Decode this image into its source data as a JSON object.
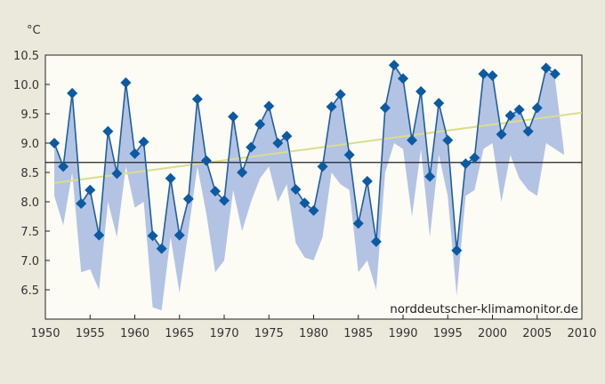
{
  "chart_data": {
    "type": "line",
    "ylabel": "°C",
    "xlabel": "",
    "watermark": "norddeutscher-klimamonitor.de",
    "xlim": [
      1950,
      2010
    ],
    "ylim": [
      6.0,
      10.5
    ],
    "x_ticks": [
      "1950",
      "1955",
      "1960",
      "1965",
      "1970",
      "1975",
      "1980",
      "1985",
      "1990",
      "1995",
      "2000",
      "2005",
      "2010"
    ],
    "y_ticks": [
      "10.5",
      "10.0",
      "9.5",
      "9.0",
      "8.5",
      "8.0",
      "7.5",
      "7.0",
      "6.5"
    ],
    "grid": false,
    "years": [
      1951,
      1952,
      1953,
      1954,
      1955,
      1956,
      1957,
      1958,
      1959,
      1960,
      1961,
      1962,
      1963,
      1964,
      1965,
      1966,
      1967,
      1968,
      1969,
      1970,
      1971,
      1972,
      1973,
      1974,
      1975,
      1976,
      1977,
      1978,
      1979,
      1980,
      1981,
      1982,
      1983,
      1984,
      1985,
      1986,
      1987,
      1988,
      1989,
      1990,
      1991,
      1992,
      1993,
      1994,
      1995,
      1996,
      1997,
      1998,
      1999,
      2000,
      2001,
      2002,
      2003,
      2004,
      2005,
      2006,
      2007
    ],
    "values": [
      9.0,
      8.6,
      9.85,
      7.97,
      8.2,
      7.43,
      9.2,
      8.48,
      10.03,
      8.82,
      9.02,
      7.42,
      7.2,
      8.4,
      7.43,
      8.05,
      9.75,
      8.7,
      8.18,
      8.02,
      9.45,
      8.5,
      8.93,
      9.32,
      9.63,
      9.0,
      9.12,
      8.21,
      7.98,
      7.85,
      8.6,
      9.62,
      9.83,
      8.8,
      7.63,
      8.35,
      7.32,
      9.6,
      10.33,
      10.1,
      9.05,
      9.88,
      8.43,
      9.68,
      9.05,
      7.17,
      8.65,
      8.75,
      10.18,
      10.15,
      9.15,
      9.47,
      9.57,
      9.2,
      9.6,
      10.28,
      10.18
    ],
    "range_band": {
      "years": [
        1951,
        1952,
        1953,
        1954,
        1955,
        1956,
        1957,
        1958,
        1959,
        1960,
        1961,
        1962,
        1963,
        1964,
        1965,
        1966,
        1967,
        1968,
        1969,
        1970,
        1971,
        1972,
        1973,
        1974,
        1975,
        1976,
        1977,
        1978,
        1979,
        1980,
        1981,
        1982,
        1983,
        1984,
        1985,
        1986,
        1987,
        1988,
        1989,
        1990,
        1991,
        1992,
        1993,
        1994,
        1995,
        1996,
        1997,
        1998,
        1999,
        2000,
        2001,
        2002,
        2003,
        2004,
        2005,
        2006,
        2007,
        2008
      ],
      "low": [
        8.1,
        7.6,
        8.5,
        6.8,
        6.85,
        6.5,
        8.0,
        7.4,
        8.6,
        7.9,
        8.0,
        6.2,
        6.15,
        7.4,
        6.45,
        7.5,
        8.6,
        7.8,
        6.8,
        7.0,
        8.2,
        7.5,
        8.0,
        8.4,
        8.6,
        8.0,
        8.3,
        7.3,
        7.05,
        7.0,
        7.4,
        8.5,
        8.3,
        8.2,
        6.8,
        7.0,
        6.5,
        8.5,
        9.0,
        8.9,
        7.75,
        8.9,
        7.4,
        8.8,
        8.1,
        6.4,
        8.1,
        8.2,
        8.9,
        9.0,
        8.0,
        8.8,
        8.4,
        8.2,
        8.1,
        9.0,
        8.9,
        8.8
      ],
      "high": [
        9.0,
        8.6,
        9.85,
        7.97,
        8.2,
        7.43,
        9.2,
        8.48,
        10.03,
        8.82,
        9.02,
        7.42,
        7.2,
        8.4,
        7.43,
        8.05,
        9.75,
        8.7,
        8.18,
        8.02,
        9.45,
        8.5,
        8.93,
        9.32,
        9.63,
        9.0,
        9.12,
        8.21,
        7.98,
        7.85,
        8.6,
        9.62,
        9.83,
        8.8,
        7.63,
        8.35,
        7.32,
        9.6,
        10.33,
        10.1,
        9.05,
        9.88,
        8.43,
        9.68,
        9.05,
        7.17,
        8.65,
        8.75,
        10.18,
        10.15,
        9.15,
        9.47,
        9.57,
        9.2,
        9.6,
        10.28,
        10.1,
        8.85
      ]
    },
    "mean_line": 8.67,
    "trend_line": {
      "x": [
        1951,
        2010
      ],
      "y": [
        8.32,
        9.52
      ]
    },
    "colors": {
      "series": "#1f5f9e",
      "marker": "#0b5aa2",
      "band": "#b3c3e4",
      "mean": "#222222",
      "trend": "#d9dd8e",
      "plot_bg": "#fcfbf4",
      "page_bg": "#ebe9dc"
    }
  }
}
